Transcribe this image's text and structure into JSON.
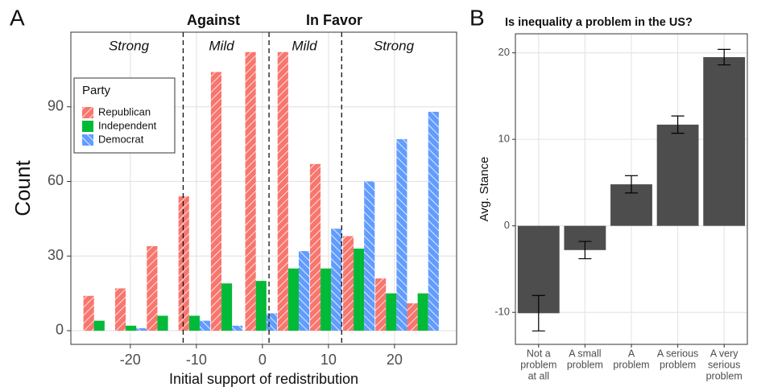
{
  "chart_data": [
    {
      "type": "grouped-bar",
      "panel_label": "A",
      "xlabel": "Initial support of redistribution",
      "ylabel": "Count",
      "headers": [
        "Against",
        "In Favor"
      ],
      "annotations": [
        "Strong",
        "Mild",
        "Mild",
        "Strong"
      ],
      "vlines": [
        -12,
        1,
        12
      ],
      "legend_title": "Party",
      "x": [
        -24.7,
        -19.9,
        -15.1,
        -10.3,
        -5.4,
        -0.2,
        4.7,
        9.6,
        14.6,
        19.5,
        24.3
      ],
      "series": [
        {
          "name": "Republican",
          "color": "#F8766D",
          "values": [
            14,
            17,
            34,
            54,
            104,
            112,
            112,
            67,
            38,
            21,
            11
          ]
        },
        {
          "name": "Independent",
          "color": "#00BA38",
          "values": [
            4,
            2,
            6,
            6,
            19,
            20,
            25,
            25,
            33,
            15,
            15
          ]
        },
        {
          "name": "Democrat",
          "color": "#619CFF",
          "values": [
            0,
            1,
            0,
            4,
            2,
            7,
            32,
            41,
            60,
            77,
            88
          ]
        }
      ],
      "xlim": [
        -29,
        29.4
      ],
      "xticks": [
        -20,
        -10,
        0,
        10,
        20
      ],
      "ylim": [
        -5.5,
        120
      ],
      "yticks": [
        0,
        30,
        60,
        90
      ],
      "grid": true
    },
    {
      "type": "bar",
      "panel_label": "B",
      "title": "Is inequality a problem in the US?",
      "ylabel": "Avg. Stance",
      "categories": [
        [
          "Not a",
          "problem",
          "at all"
        ],
        [
          "A small",
          "problem"
        ],
        [
          "A",
          "problem"
        ],
        [
          "A serious",
          "problem"
        ],
        [
          "A very",
          "serious",
          "problem"
        ]
      ],
      "values": [
        -10.1,
        -2.8,
        4.8,
        11.7,
        19.5
      ],
      "errors": [
        2.05,
        1,
        1,
        1,
        0.9
      ],
      "color": "#4d4d4d",
      "ylim": [
        -13.7,
        22.2
      ],
      "yticks": [
        -10,
        0,
        10,
        20
      ],
      "grid": true
    }
  ]
}
